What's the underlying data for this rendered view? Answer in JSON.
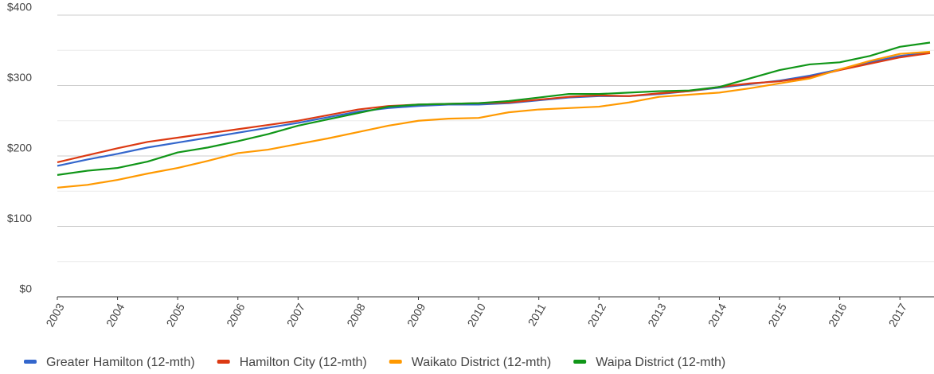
{
  "chart_data": {
    "type": "line",
    "x": [
      2003,
      2003.5,
      2004,
      2004.5,
      2005,
      2005.5,
      2006,
      2006.5,
      2007,
      2007.5,
      2008,
      2008.5,
      2009,
      2009.5,
      2010,
      2010.5,
      2011,
      2011.5,
      2012,
      2012.5,
      2013,
      2013.5,
      2014,
      2014.5,
      2015,
      2015.5,
      2016,
      2016.5,
      2017,
      2017.5
    ],
    "series": [
      {
        "name": "Greater Hamilton (12-mth)",
        "color": "#3366cc",
        "values": [
          186,
          195,
          203,
          212,
          219,
          226,
          233,
          240,
          247,
          255,
          263,
          268,
          271,
          273,
          273,
          275,
          279,
          283,
          285,
          285,
          288,
          292,
          297,
          302,
          307,
          314,
          323,
          333,
          342,
          347
        ]
      },
      {
        "name": "Hamilton City (12-mth)",
        "color": "#dc3912",
        "values": [
          191,
          201,
          211,
          220,
          226,
          232,
          238,
          244,
          250,
          258,
          266,
          271,
          273,
          274,
          275,
          276,
          280,
          284,
          286,
          285,
          289,
          292,
          298,
          303,
          306,
          312,
          322,
          331,
          340,
          346
        ]
      },
      {
        "name": "Waikato District (12-mth)",
        "color": "#ff9900",
        "values": [
          155,
          159,
          166,
          175,
          183,
          193,
          204,
          209,
          217,
          225,
          234,
          243,
          250,
          253,
          254,
          262,
          266,
          268,
          270,
          276,
          284,
          287,
          290,
          296,
          303,
          310,
          323,
          335,
          345,
          348
        ]
      },
      {
        "name": "Waipa District (12-mth)",
        "color": "#109618",
        "values": [
          173,
          179,
          183,
          192,
          205,
          212,
          221,
          231,
          243,
          252,
          261,
          270,
          273,
          274,
          275,
          278,
          283,
          288,
          288,
          290,
          292,
          293,
          298,
          310,
          322,
          330,
          333,
          342,
          355,
          361
        ]
      }
    ],
    "xlim": [
      2003,
      2017.5
    ],
    "xticks": [
      2003,
      2004,
      2005,
      2006,
      2007,
      2008,
      2009,
      2010,
      2011,
      2012,
      2013,
      2014,
      2015,
      2016,
      2017
    ],
    "ylim": [
      0,
      400
    ],
    "yticks": [
      {
        "value": 0,
        "label": "$0"
      },
      {
        "value": 100,
        "label": "$100"
      },
      {
        "value": 200,
        "label": "$200"
      },
      {
        "value": 300,
        "label": "$300"
      },
      {
        "value": 400,
        "label": "$400"
      }
    ],
    "minor_yticks": [
      50,
      150,
      250,
      350
    ],
    "grid": true,
    "legend": "bottom"
  }
}
